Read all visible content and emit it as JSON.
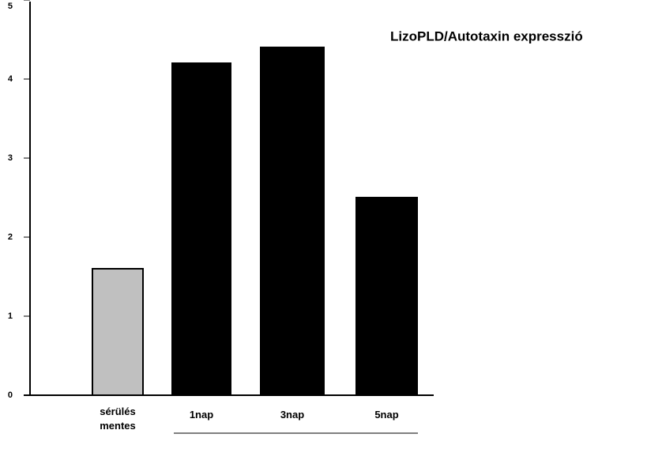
{
  "chart_data": {
    "type": "bar",
    "title": "LizoPLD/Autotaxin expresszió",
    "categories": [
      "sérülés mentes",
      "1nap",
      "3nap",
      "5nap"
    ],
    "values": [
      1.6,
      4.2,
      4.4,
      2.5
    ],
    "colors": [
      "#c0c0c0",
      "#000000",
      "#000000",
      "#000000"
    ],
    "ylim": [
      0,
      5
    ],
    "yticks": [
      0,
      1,
      2,
      3,
      4,
      5
    ],
    "grid": false
  }
}
